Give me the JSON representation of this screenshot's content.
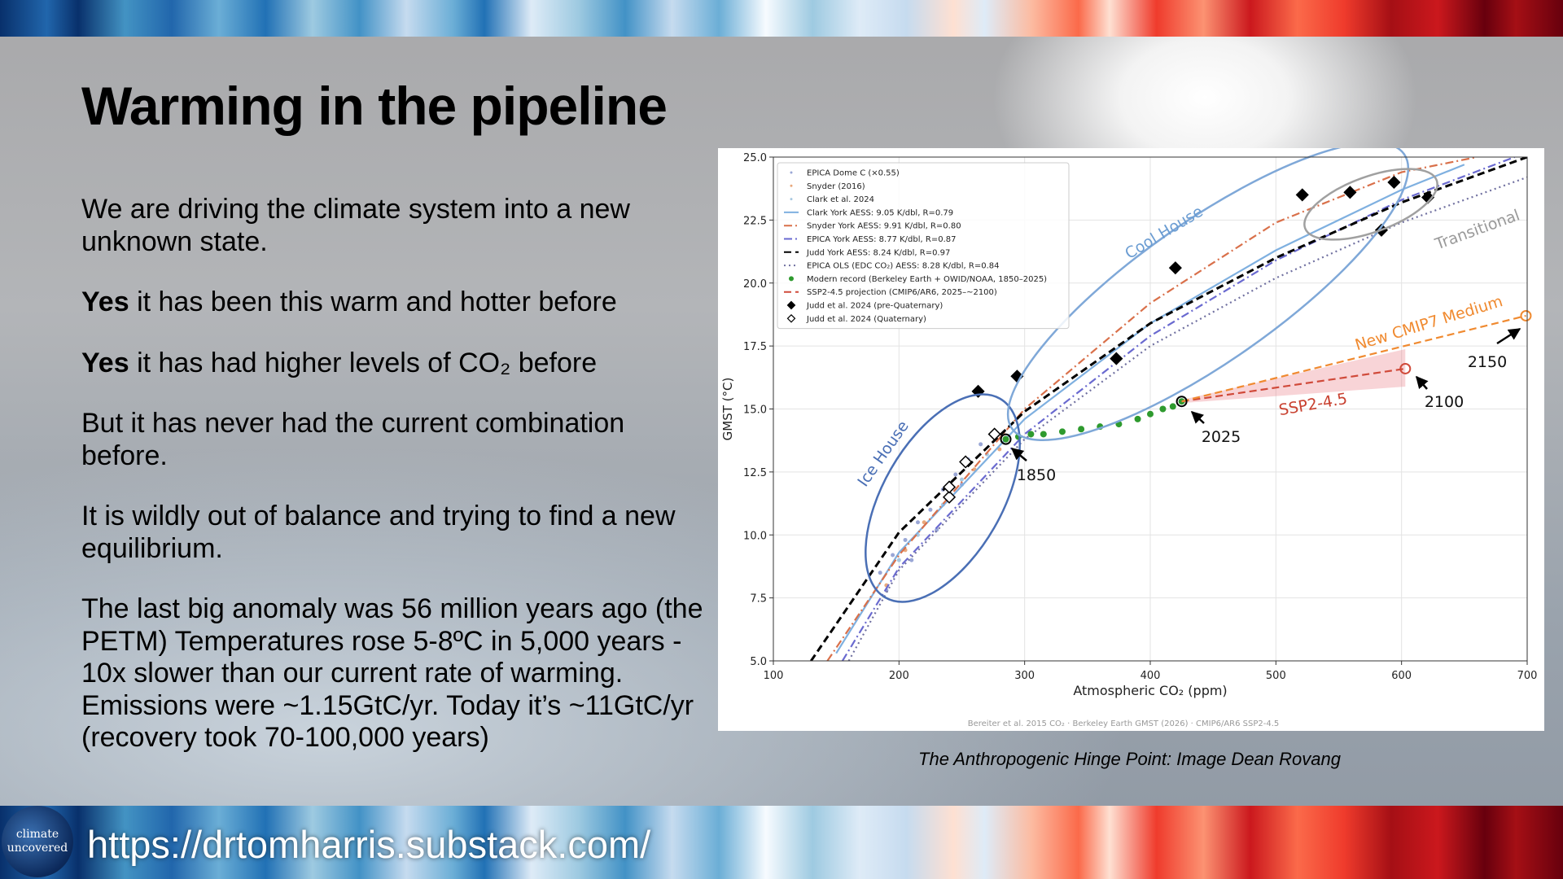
{
  "title": "Warming in the pipeline",
  "body": [
    {
      "text": "We are driving the climate system into a new unknown state."
    },
    {
      "lead": "Yes",
      "text": "it has been this warm and hotter before"
    },
    {
      "lead": "Yes",
      "text": "it has had higher levels of CO₂ before"
    },
    {
      "text": "But it has never had the current combination before."
    },
    {
      "text": "It is wildly out of balance and trying to find a new equilibrium."
    },
    {
      "text": "The last big anomaly was 56 million years ago (the PETM) Temperatures rose 5-8ºC in 5,000 years - 10x slower than our current rate of warming. Emissions were ~1.15GtC/yr. Today it’s ~11GtC/yr (recovery took 70-100,000 years)"
    }
  ],
  "chart_data": {
    "type": "scatter",
    "xlabel": "Atmospheric CO₂ (ppm)",
    "ylabel": "GMST (°C)",
    "xlim": [
      100,
      700
    ],
    "xticks": [
      100,
      200,
      300,
      400,
      500,
      600,
      700
    ],
    "ylim": [
      5,
      25
    ],
    "yticks": [
      {
        "value": 5,
        "label": "5.0"
      },
      7.5,
      {
        "value": 10,
        "label": "10.0"
      },
      12.5,
      {
        "value": 15,
        "label": "15.0"
      },
      17.5,
      {
        "value": 20,
        "label": "20.0"
      },
      22.5,
      {
        "value": 25,
        "label": "25.0"
      }
    ],
    "grid": true,
    "legend": "upper left",
    "series": [
      {
        "name": "EPICA Dome C (×0.55)",
        "color": "#9aa7d6",
        "marker": "dot",
        "x": [
          185,
          195,
          205,
          215,
          225,
          235,
          245,
          255,
          265,
          275,
          190,
          230,
          250,
          210
        ],
        "values": [
          8.5,
          9.2,
          9.8,
          10.5,
          11.0,
          11.8,
          12.4,
          13.0,
          13.6,
          14.0,
          7.8,
          10.2,
          12.0,
          9.0
        ]
      },
      {
        "name": "Snyder (2016)",
        "color": "#e8a87c",
        "marker": "dot",
        "x": [
          190,
          205,
          220,
          240,
          260,
          280
        ],
        "values": [
          8.0,
          9.4,
          10.5,
          11.6,
          12.6,
          13.4
        ]
      },
      {
        "name": "Clark et al. 2024",
        "color": "#a8c8e0",
        "marker": "dot",
        "x": [
          200,
          215,
          235,
          250,
          270
        ],
        "values": [
          9.0,
          10.0,
          11.2,
          12.2,
          13.2
        ]
      },
      {
        "name": "Clark York AESS: 9.05 K/dbl, R=0.79",
        "color": "#7fb0e0",
        "dash": "solid",
        "x": [
          150,
          200,
          300,
          400,
          500,
          600,
          650
        ],
        "values": [
          5.3,
          9.3,
          14.6,
          18.4,
          21.3,
          23.7,
          24.7
        ]
      },
      {
        "name": "Snyder York AESS: 9.91 K/dbl, R=0.80",
        "color": "#d9704a",
        "dash": "dashdot",
        "x": [
          143,
          200,
          300,
          400,
          500,
          600,
          660
        ],
        "values": [
          5.0,
          9.2,
          15.0,
          19.2,
          22.4,
          24.4,
          25.0
        ]
      },
      {
        "name": "EPICA York AESS: 8.77 K/dbl, R=0.87",
        "color": "#6a6ad0",
        "dash": "dashdot",
        "x": [
          155,
          200,
          300,
          400,
          500,
          600,
          690
        ],
        "values": [
          5.0,
          8.7,
          14.0,
          17.9,
          20.9,
          23.3,
          25.0
        ]
      },
      {
        "name": "Judd York AESS: 8.24 K/dbl, R=0.97",
        "color": "#000000",
        "dash": "dashed",
        "x": [
          130,
          200,
          300,
          400,
          500,
          600,
          700
        ],
        "values": [
          5.0,
          10.1,
          14.9,
          18.4,
          21.0,
          23.2,
          25.0
        ]
      },
      {
        "name": "EPICA OLS (EDC CO₂) AESS: 8.28 K/dbl, R=0.84",
        "color": "#7070a0",
        "dash": "dotted",
        "x": [
          160,
          200,
          300,
          400,
          500,
          600,
          700
        ],
        "values": [
          5.0,
          8.6,
          13.8,
          17.5,
          20.2,
          22.4,
          24.2
        ]
      },
      {
        "name": "Modern record (Berkeley Earth + OWID/NOAA, 1850–2025)",
        "color": "#2e9a2e",
        "marker": "dot",
        "x": [
          285,
          295,
          305,
          315,
          330,
          345,
          360,
          375,
          390,
          400,
          410,
          418,
          425
        ],
        "values": [
          13.8,
          13.9,
          14.0,
          14.0,
          14.1,
          14.2,
          14.3,
          14.4,
          14.6,
          14.8,
          15.0,
          15.1,
          15.3
        ]
      },
      {
        "name": "SSP2-4.5 projection (CMIP6/AR6, 2025–~2100)",
        "color": "#d04a3a",
        "dash": "dashed",
        "x": [
          425,
          603
        ],
        "values": [
          15.3,
          16.6
        ]
      },
      {
        "name": "Judd et al. 2024 (pre-Quaternary)",
        "color": "#000000",
        "marker": "diamond",
        "x": [
          263,
          294,
          373,
          420,
          521,
          559,
          584,
          594,
          621
        ],
        "values": [
          15.7,
          16.3,
          17.0,
          20.6,
          23.5,
          23.6,
          22.1,
          24.0,
          23.4
        ]
      },
      {
        "name": "Judd et al. 2024 (Quaternary)",
        "color": "#000000",
        "marker": "diamond-open",
        "x": [
          240,
          240,
          253,
          276
        ],
        "values": [
          11.5,
          11.9,
          12.9,
          14.0
        ]
      },
      {
        "name": "New CMIP7 Medium",
        "color": "#f08a30",
        "dash": "dashed",
        "in_legend": false,
        "x": [
          425,
          699
        ],
        "values": [
          15.3,
          18.7
        ]
      }
    ],
    "annotations": [
      "Ice House",
      "Cool House",
      "Transitional",
      "SSP2-4.5",
      "1850",
      "2025",
      "2100",
      "2150"
    ],
    "source": "Bereiter et al. 2015 CO₂  ·  Berkeley Earth GMST (2026)  ·  CMIP6/AR6 SSP2-4.5"
  },
  "caption": "The Anthropogenic Hinge Point: Image Dean Rovang",
  "logo": [
    "climate",
    "uncovered"
  ],
  "url": "https://drtomharris.substack.com/"
}
